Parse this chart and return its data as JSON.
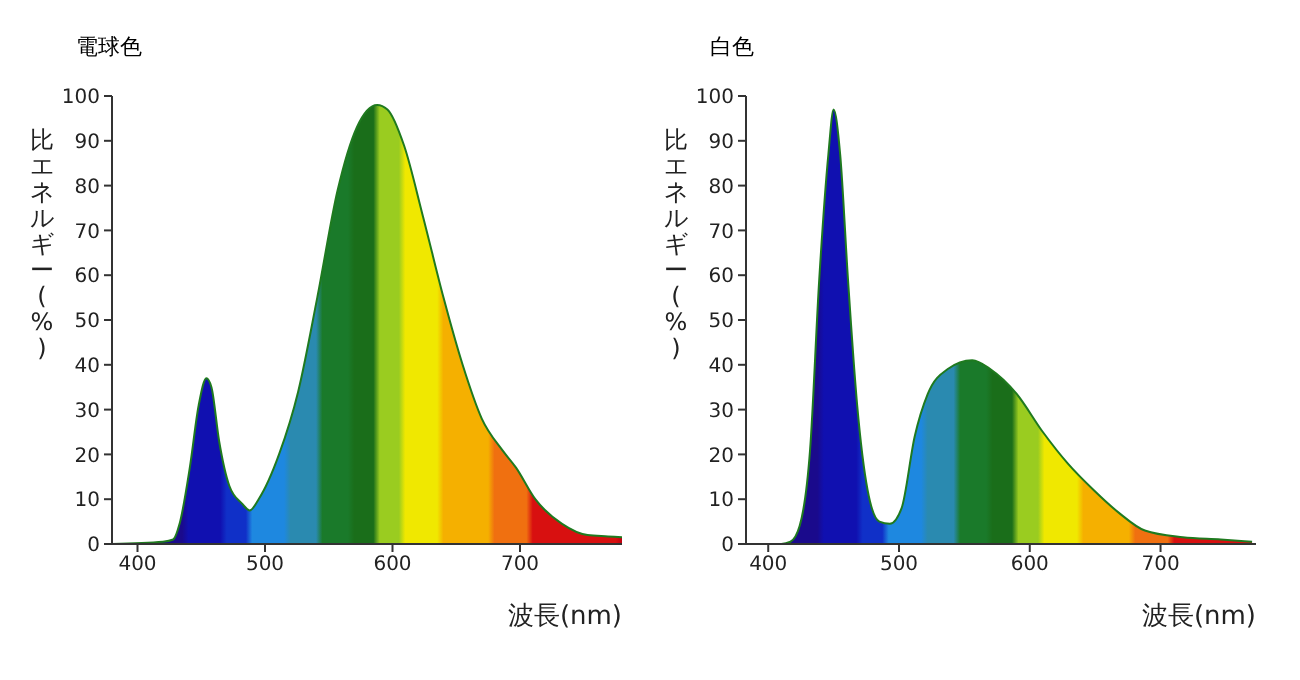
{
  "chart_data": [
    {
      "type": "area",
      "title": "電球色",
      "xlabel": "波長(nm)",
      "ylabel": "比エネルギー(%)",
      "xlim": [
        380,
        780
      ],
      "xticks": [
        400,
        500,
        600,
        700
      ],
      "ylim": [
        0,
        100
      ],
      "yticks": [
        0,
        10,
        20,
        30,
        40,
        50,
        60,
        70,
        80,
        90,
        100
      ],
      "series": [
        {
          "color": "#1f7a1f",
          "x": [
            380,
            420,
            428,
            433,
            441,
            448,
            454,
            458,
            464,
            472,
            482,
            488,
            495,
            511,
            526,
            541,
            557,
            572,
            588,
            596,
            609,
            624,
            640,
            655,
            670,
            686,
            697,
            712,
            733,
            753,
            769,
            780
          ],
          "values": [
            0,
            0.5,
            1,
            4.5,
            17,
            31,
            37,
            35,
            23,
            13,
            9,
            7.5,
            10,
            20,
            34,
            55,
            79,
            93,
            98,
            97,
            89,
            73,
            55,
            40,
            28,
            21,
            17,
            10,
            4.5,
            2,
            1.7,
            1.5
          ]
        }
      ]
    },
    {
      "type": "area",
      "title": "白色",
      "xlabel": "波長(nm)",
      "ylabel": "比エネルギー(%)",
      "xlim": [
        383,
        773
      ],
      "xticks": [
        400,
        500,
        600,
        700
      ],
      "ylim": [
        0,
        100
      ],
      "yticks": [
        0,
        10,
        20,
        30,
        40,
        50,
        60,
        70,
        80,
        90,
        100
      ],
      "series": [
        {
          "color": "#1f7a1f",
          "x": [
            383,
            410,
            417,
            424,
            432,
            439,
            446,
            450,
            455,
            461,
            468,
            476,
            485,
            493,
            502,
            512,
            522,
            537,
            556,
            570,
            590,
            610,
            629,
            649,
            668,
            688,
            717,
            746,
            770
          ],
          "values": [
            0,
            0,
            0.5,
            4,
            21,
            59,
            87,
            97,
            87,
            59,
            31,
            12,
            5,
            4.5,
            8,
            24,
            33.5,
            39,
            41,
            39,
            33.5,
            25,
            18,
            12,
            7,
            3,
            1.5,
            1,
            0.5
          ]
        }
      ]
    }
  ]
}
